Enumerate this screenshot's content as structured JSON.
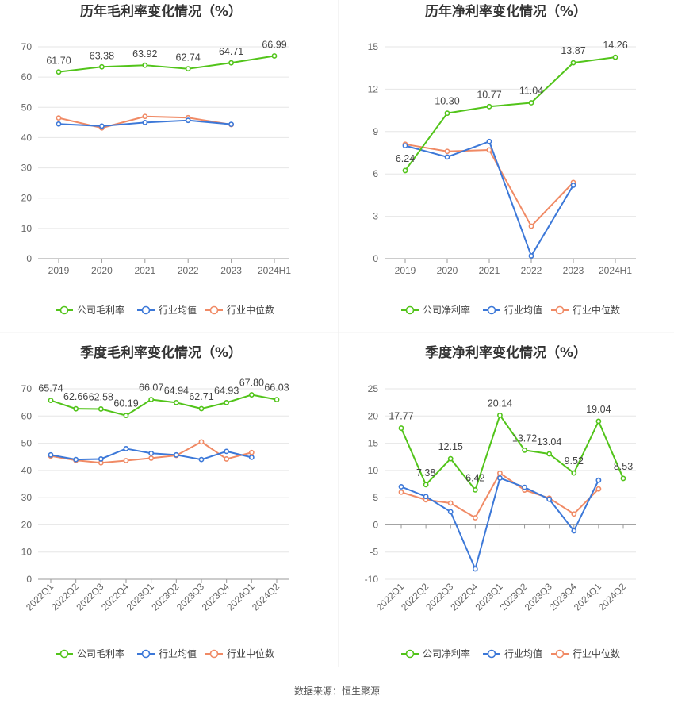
{
  "source": "数据来源：恒生聚源",
  "chart_data": [
    {
      "type": "line",
      "title": "历年毛利率变化情况（%）",
      "categories": [
        "2019",
        "2020",
        "2021",
        "2022",
        "2023",
        "2024H1"
      ],
      "ylim": [
        0,
        70
      ],
      "yticks": [
        0,
        10,
        20,
        30,
        40,
        50,
        60,
        70
      ],
      "grid": true,
      "legend_position": "bottom",
      "series": [
        {
          "name": "公司毛利率",
          "color": "#52c41a",
          "values": [
            61.7,
            63.38,
            63.92,
            62.74,
            64.71,
            66.99
          ],
          "labels": [
            "61.70",
            "63.38",
            "63.92",
            "62.74",
            "64.71",
            "66.99"
          ]
        },
        {
          "name": "行业均值",
          "color": "#3c78d8",
          "values": [
            44.5,
            43.8,
            45.0,
            45.7,
            44.4,
            null
          ]
        },
        {
          "name": "行业中位数",
          "color": "#f08a65",
          "values": [
            46.5,
            43.2,
            47.0,
            46.6,
            44.3,
            null
          ]
        }
      ]
    },
    {
      "type": "line",
      "title": "历年净利率变化情况（%）",
      "categories": [
        "2019",
        "2020",
        "2021",
        "2022",
        "2023",
        "2024H1"
      ],
      "ylim": [
        0,
        15
      ],
      "yticks": [
        0,
        3,
        6,
        9,
        12,
        15
      ],
      "grid": true,
      "legend_position": "bottom",
      "series": [
        {
          "name": "公司净利率",
          "color": "#52c41a",
          "values": [
            6.24,
            10.3,
            10.77,
            11.04,
            13.87,
            14.26
          ],
          "labels": [
            "6.24",
            "10.30",
            "10.77",
            "11.04",
            "13.87",
            "14.26"
          ]
        },
        {
          "name": "行业均值",
          "color": "#3c78d8",
          "values": [
            8.0,
            7.2,
            8.3,
            0.2,
            5.2,
            null
          ]
        },
        {
          "name": "行业中位数",
          "color": "#f08a65",
          "values": [
            8.1,
            7.6,
            7.7,
            2.3,
            5.4,
            null
          ]
        }
      ]
    },
    {
      "type": "line",
      "title": "季度毛利率变化情况（%）",
      "categories": [
        "2022Q1",
        "2022Q2",
        "2022Q3",
        "2022Q4",
        "2023Q1",
        "2023Q2",
        "2023Q3",
        "2023Q4",
        "2024Q1",
        "2024Q2"
      ],
      "ylim": [
        0,
        70
      ],
      "yticks": [
        0,
        10,
        20,
        30,
        40,
        50,
        60,
        70
      ],
      "grid": true,
      "rotate_x": true,
      "legend_position": "bottom",
      "series": [
        {
          "name": "公司毛利率",
          "color": "#52c41a",
          "values": [
            65.74,
            62.66,
            62.58,
            60.19,
            66.07,
            64.94,
            62.71,
            64.93,
            67.8,
            66.03
          ],
          "labels": [
            "65.74",
            "62.66",
            "62.58",
            "60.19",
            "66.07",
            "64.94",
            "62.71",
            "64.93",
            "67.80",
            "66.03"
          ]
        },
        {
          "name": "行业均值",
          "color": "#3c78d8",
          "values": [
            45.7,
            44.0,
            44.2,
            48.0,
            46.3,
            45.7,
            44.0,
            47.0,
            44.8,
            null
          ]
        },
        {
          "name": "行业中位数",
          "color": "#f08a65",
          "values": [
            45.3,
            43.7,
            42.8,
            43.6,
            44.5,
            45.5,
            50.5,
            44.2,
            46.6,
            null
          ]
        }
      ]
    },
    {
      "type": "line",
      "title": "季度净利率变化情况（%）",
      "categories": [
        "2022Q1",
        "2022Q2",
        "2022Q3",
        "2022Q4",
        "2023Q1",
        "2023Q2",
        "2023Q3",
        "2023Q4",
        "2024Q1",
        "2024Q2"
      ],
      "ylim": [
        -10,
        25
      ],
      "yticks": [
        -10,
        -5,
        0,
        5,
        10,
        15,
        20,
        25
      ],
      "grid": true,
      "rotate_x": true,
      "legend_position": "bottom",
      "series": [
        {
          "name": "公司净利率",
          "color": "#52c41a",
          "values": [
            17.77,
            7.38,
            12.15,
            6.42,
            20.14,
            13.72,
            13.04,
            9.52,
            19.04,
            8.53
          ],
          "labels": [
            "17.77",
            "7.38",
            "12.15",
            "6.42",
            "20.14",
            "13.72",
            "13.04",
            "9.52",
            "19.04",
            "8.53"
          ]
        },
        {
          "name": "行业均值",
          "color": "#3c78d8",
          "values": [
            7.0,
            5.2,
            2.4,
            -8.1,
            8.6,
            6.9,
            4.7,
            -1.1,
            8.2,
            null
          ]
        },
        {
          "name": "行业中位数",
          "color": "#f08a65",
          "values": [
            6.0,
            4.6,
            4.0,
            1.3,
            9.5,
            6.4,
            4.9,
            2.0,
            6.6,
            null
          ]
        }
      ]
    }
  ]
}
